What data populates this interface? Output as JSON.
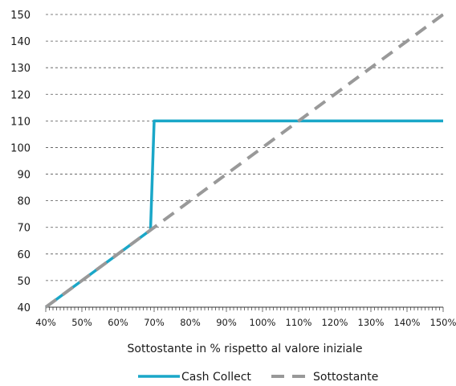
{
  "chart_data": {
    "type": "line",
    "xlabel": "Sottostante in % rispetto al valore iniziale",
    "ylabel": "",
    "title": "",
    "xlim": [
      40,
      150
    ],
    "ylim": [
      40,
      150
    ],
    "x_ticks": [
      "40%",
      "50%",
      "60%",
      "70%",
      "80%",
      "90%",
      "100%",
      "110%",
      "120%",
      "130%",
      "140%",
      "150%"
    ],
    "y_ticks": [
      "40",
      "50",
      "60",
      "70",
      "80",
      "90",
      "100",
      "110",
      "120",
      "130",
      "140",
      "150"
    ],
    "grid": "horizontal dashed",
    "legend_position": "bottom",
    "series": [
      {
        "name": "Cash Collect",
        "style": "solid",
        "color": "#1aa7c8",
        "points": [
          [
            40,
            40
          ],
          [
            69,
            69
          ],
          [
            70,
            110
          ],
          [
            150,
            110
          ]
        ]
      },
      {
        "name": "Sottostante",
        "style": "dashed",
        "color": "#999999",
        "points": [
          [
            40,
            40
          ],
          [
            150,
            150
          ]
        ]
      }
    ]
  }
}
